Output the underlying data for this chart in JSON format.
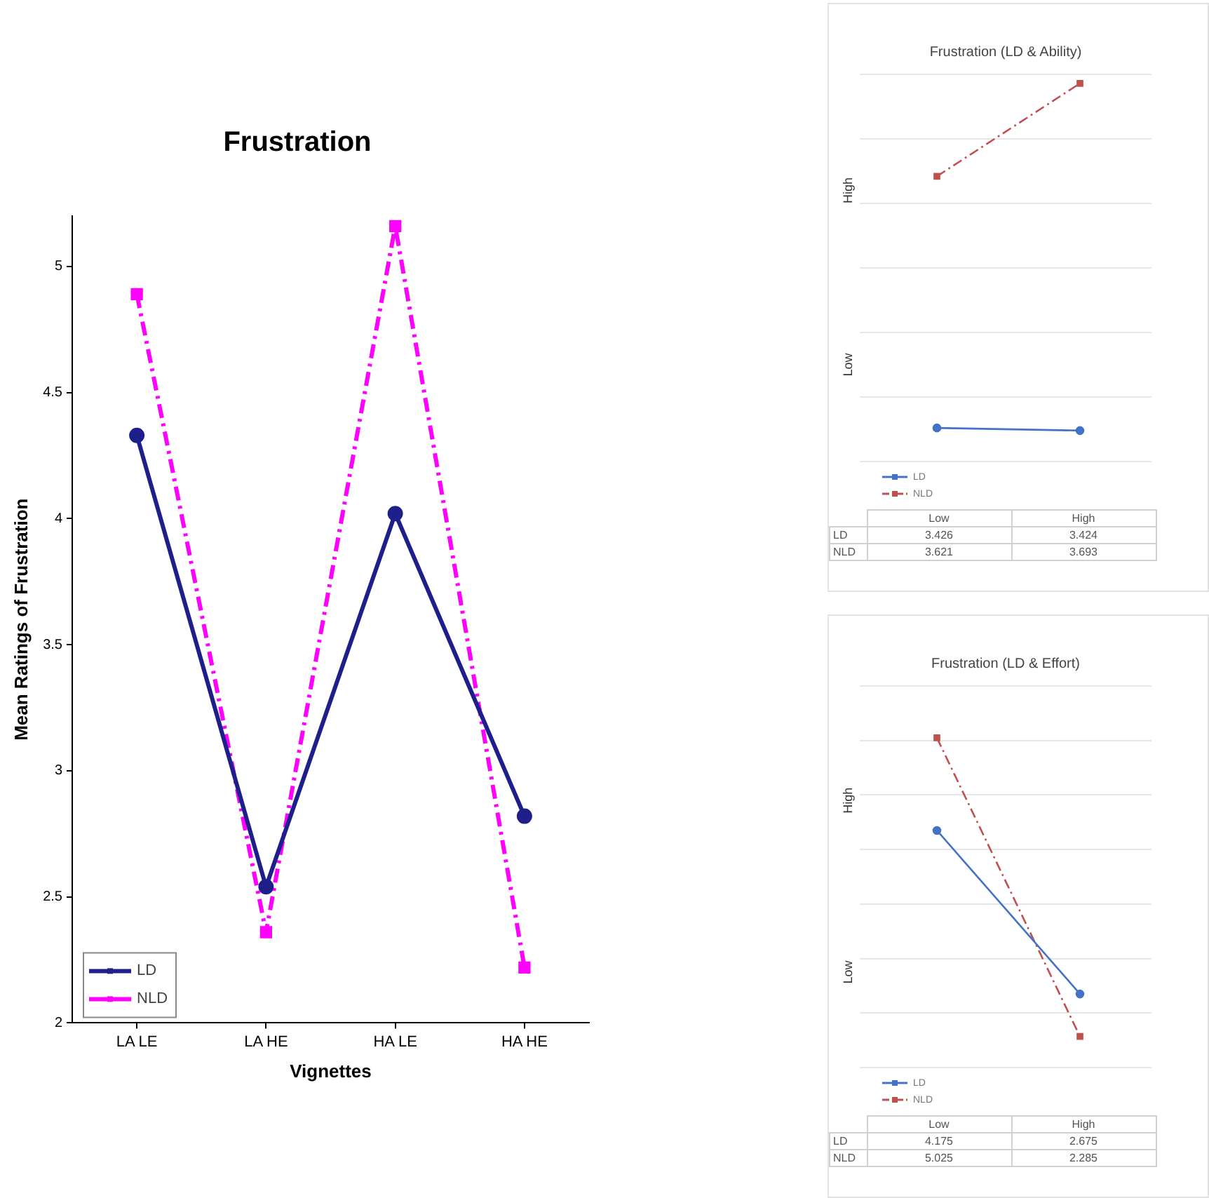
{
  "chart_data": [
    {
      "type": "line",
      "title": "Frustration",
      "xlabel": "Vignettes",
      "ylabel": "Mean Ratings of Frustration",
      "categories": [
        "LA LE",
        "LA HE",
        "HA LE",
        "HA HE"
      ],
      "series": [
        {
          "name": "LD",
          "color": "#1f1f8c",
          "values": [
            4.33,
            2.54,
            4.02,
            2.82
          ],
          "marker": "circle",
          "line_style": "solid"
        },
        {
          "name": "NLD",
          "color": "#ff00ff",
          "values": [
            4.89,
            2.36,
            5.16,
            2.22
          ],
          "marker": "square",
          "line_style": "dashed"
        }
      ],
      "ylim": [
        2,
        5.2
      ],
      "yticks": [
        2,
        2.5,
        3,
        3.5,
        4,
        4.5,
        5
      ],
      "grid": false,
      "legend": "bottom left"
    },
    {
      "type": "line",
      "title": "Frustration (LD & Ability)",
      "categories": [
        "Low",
        "High"
      ],
      "series": [
        {
          "name": "LD",
          "color": "#4472c4",
          "values": [
            3.426,
            3.424
          ],
          "marker": "circle",
          "line_style": "solid"
        },
        {
          "name": "NLD",
          "color": "#c0504d",
          "values": [
            3.621,
            3.693
          ],
          "marker": "square",
          "line_style": "dashed"
        }
      ],
      "annotations": [
        "High",
        "Low"
      ],
      "grid": "y",
      "legend": "bottom left",
      "tick_labels": false,
      "data_labels": true
    },
    {
      "type": "line",
      "title": "Frustration (LD & Effort)",
      "categories": [
        "Low",
        "High"
      ],
      "series": [
        {
          "name": "LD",
          "color": "#4472c4",
          "values": [
            4.175,
            2.675
          ],
          "marker": "circle",
          "line_style": "solid"
        },
        {
          "name": "NLD",
          "color": "#c0504d",
          "values": [
            5.025,
            2.285
          ],
          "marker": "square",
          "line_style": "dashed"
        }
      ],
      "annotations": [
        "High",
        "Low"
      ],
      "grid": "y",
      "legend": "bottom left",
      "tick_labels": false,
      "data_labels": true
    }
  ]
}
